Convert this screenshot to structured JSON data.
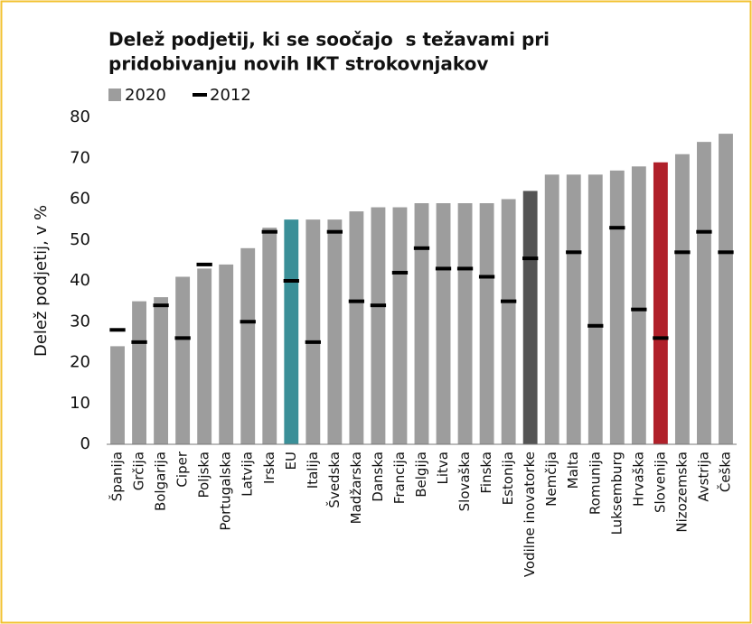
{
  "chart_data": {
    "type": "bar",
    "title": [
      "Delež podjetij, ki se soočajo  s težavami pri",
      "pridobivanju novih IKT strokovnjakov"
    ],
    "y_label": "Delež podjetij, v %",
    "categories": [
      "Španija",
      "Grčija",
      "Bolgarija",
      "Ciper",
      "Poljska",
      "Portugalska",
      "Latvija",
      "Irska",
      "EU",
      "Italija",
      "Švedska",
      "Madžarska",
      "Danska",
      "Francija",
      "Belgija",
      "Litva",
      "Slovaška",
      "Finska",
      "Estonija",
      "Vodilne inovatorke",
      "Nemčija",
      "Malta",
      "Romunija",
      "Luksemburg",
      "Hrvaška",
      "Slovenija",
      "Nizozemska",
      "Avstrija",
      "Češka"
    ],
    "series": [
      {
        "name": "2020",
        "color": "#9d9d9d",
        "colors": [
          "#9d9d9d",
          "#9d9d9d",
          "#9d9d9d",
          "#9d9d9d",
          "#9d9d9d",
          "#9d9d9d",
          "#9d9d9d",
          "#9d9d9d",
          "#3a8f98",
          "#9d9d9d",
          "#9d9d9d",
          "#9d9d9d",
          "#9d9d9d",
          "#9d9d9d",
          "#9d9d9d",
          "#9d9d9d",
          "#9d9d9d",
          "#9d9d9d",
          "#9d9d9d",
          "#545454",
          "#9d9d9d",
          "#9d9d9d",
          "#9d9d9d",
          "#9d9d9d",
          "#9d9d9d",
          "#b0202a",
          "#9d9d9d",
          "#9d9d9d",
          "#9d9d9d"
        ],
        "values": [
          24,
          35,
          36,
          41,
          43,
          44,
          48,
          53,
          55,
          55,
          55,
          57,
          58,
          58,
          59,
          59,
          59,
          59,
          60,
          62,
          66,
          66,
          66,
          67,
          68,
          69,
          71,
          74,
          76
        ]
      },
      {
        "name": "2012",
        "color": "#000000",
        "values": [
          28,
          25,
          34,
          26,
          44,
          null,
          30,
          52,
          40,
          25,
          52,
          35,
          34,
          42,
          48,
          43,
          43,
          41,
          35,
          45.5,
          null,
          47,
          29,
          53,
          33,
          26,
          47,
          52,
          47
        ]
      }
    ],
    "ylim": [
      0,
      80
    ],
    "yticks": [
      0,
      10,
      20,
      30,
      40,
      50,
      60,
      70,
      80
    ],
    "grid": false
  }
}
